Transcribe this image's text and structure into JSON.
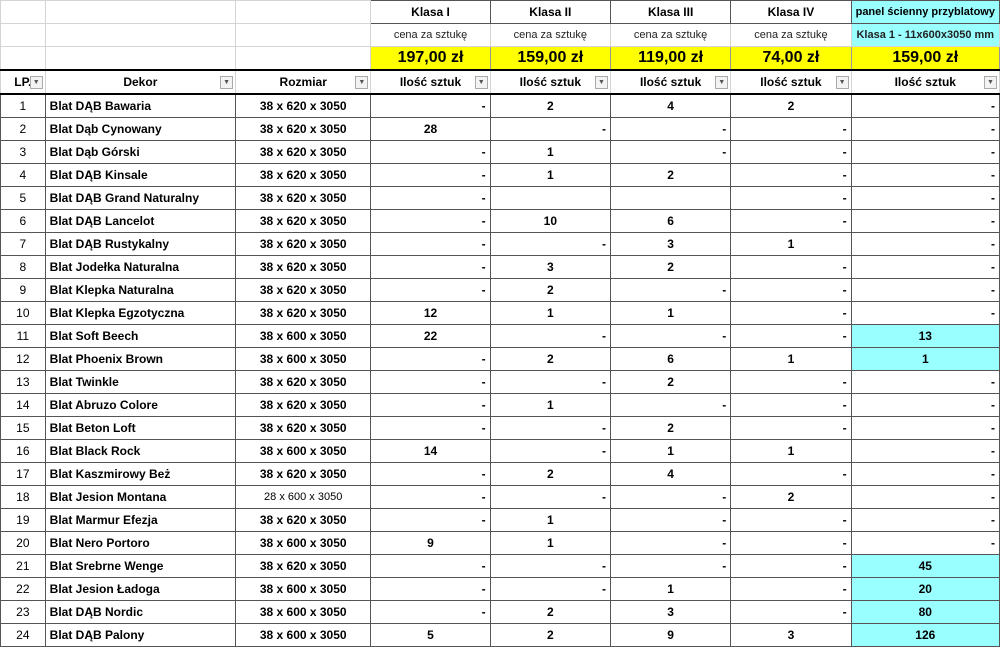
{
  "header": {
    "classes": [
      "Klasa I",
      "Klasa II",
      "Klasa III",
      "Klasa IV"
    ],
    "panel_title": "panel ścienny przyblatowy",
    "panel_subtitle": "Klasa 1 - 11x600x3050 mm",
    "price_label": "cena za sztukę",
    "prices": [
      "197,00 zł",
      "159,00 zł",
      "119,00 zł",
      "74,00 zł",
      "159,00 zł"
    ]
  },
  "columns": {
    "lp": "LP.",
    "dekor": "Dekor",
    "rozmiar": "Rozmiar",
    "qty": "Ilość sztuk"
  },
  "colors": {
    "price_bg": "#ffff00",
    "panel_bg": "#99ffff"
  },
  "rows": [
    {
      "lp": "1",
      "dekor": "Blat DĄB Bawaria",
      "size": "38 x 620 x 3050",
      "q": [
        "-",
        "2",
        "4",
        "2",
        "-"
      ]
    },
    {
      "lp": "2",
      "dekor": "Blat Dąb Cynowany",
      "size": "38 x 620 x 3050",
      "q": [
        "28",
        "-",
        "-",
        "-",
        "-"
      ]
    },
    {
      "lp": "3",
      "dekor": "Blat Dąb Górski",
      "size": "38 x 620 x 3050",
      "q": [
        "-",
        "1",
        "-",
        "-",
        "-"
      ]
    },
    {
      "lp": "4",
      "dekor": "Blat DĄB Kinsale",
      "size": "38 x 620 x 3050",
      "q": [
        "-",
        "1",
        "2",
        "-",
        "-"
      ]
    },
    {
      "lp": "5",
      "dekor": "Blat DĄB Grand Naturalny",
      "size": "38 x 620 x 3050",
      "q": [
        "-",
        "",
        "",
        "-",
        "-"
      ]
    },
    {
      "lp": "6",
      "dekor": "Blat DĄB Lancelot",
      "size": "38 x 620 x 3050",
      "q": [
        "-",
        "10",
        "6",
        "-",
        "-"
      ]
    },
    {
      "lp": "7",
      "dekor": "Blat DĄB Rustykalny",
      "size": "38 x 620 x 3050",
      "q": [
        "-",
        "-",
        "3",
        "1",
        "-"
      ]
    },
    {
      "lp": "8",
      "dekor": "Blat Jodełka Naturalna",
      "size": "38 x 620 x 3050",
      "q": [
        "-",
        "3",
        "2",
        "-",
        "-"
      ]
    },
    {
      "lp": "9",
      "dekor": "Blat Klepka Naturalna",
      "size": "38 x 620 x 3050",
      "q": [
        "-",
        "2",
        "-",
        "-",
        "-"
      ]
    },
    {
      "lp": "10",
      "dekor": "Blat Klepka Egzotyczna",
      "size": "38 x 620 x 3050",
      "q": [
        "12",
        "1",
        "1",
        "-",
        "-"
      ]
    },
    {
      "lp": "11",
      "dekor": "Blat Soft Beech",
      "size": "38 x 600 x 3050",
      "q": [
        "22",
        "-",
        "-",
        "-",
        "13"
      ]
    },
    {
      "lp": "12",
      "dekor": "Blat Phoenix Brown",
      "size": "38 x 600 x 3050",
      "q": [
        "-",
        "2",
        "6",
        "1",
        "1"
      ]
    },
    {
      "lp": "13",
      "dekor": "Blat Twinkle",
      "size": "38 x 620 x 3050",
      "q": [
        "-",
        "-",
        "2",
        "-",
        "-"
      ]
    },
    {
      "lp": "14",
      "dekor": "Blat Abruzo Colore",
      "size": "38 x 620 x 3050",
      "q": [
        "-",
        "1",
        "-",
        "-",
        "-"
      ]
    },
    {
      "lp": "15",
      "dekor": "Blat Beton Loft",
      "size": "38 x 620 x 3050",
      "q": [
        "-",
        "-",
        "2",
        "-",
        "-"
      ]
    },
    {
      "lp": "16",
      "dekor": "Blat Black Rock",
      "size": "38 x 600 x 3050",
      "q": [
        "14",
        "-",
        "1",
        "1",
        "-"
      ]
    },
    {
      "lp": "17",
      "dekor": "Blat Kaszmirowy Beż",
      "size": "38 x 620 x 3050",
      "q": [
        "-",
        "2",
        "4",
        "-",
        "-"
      ]
    },
    {
      "lp": "18",
      "dekor": "Blat Jesion Montana",
      "size": "28 x 600 x 3050",
      "q": [
        "-",
        "-",
        "-",
        "2",
        "-"
      ]
    },
    {
      "lp": "19",
      "dekor": "Blat Marmur Efezja",
      "size": "38 x 620 x 3050",
      "q": [
        "-",
        "1",
        "-",
        "-",
        "-"
      ]
    },
    {
      "lp": "20",
      "dekor": "Blat Nero Portoro",
      "size": "38 x 600 x 3050",
      "q": [
        "9",
        "1",
        "-",
        "-",
        "-"
      ]
    },
    {
      "lp": "21",
      "dekor": "Blat Srebrne Wenge",
      "size": "38 x 620 x 3050",
      "q": [
        "-",
        "-",
        "-",
        "-",
        "45"
      ]
    },
    {
      "lp": "22",
      "dekor": "Blat Jesion Ładoga",
      "size": "38 x 600 x 3050",
      "q": [
        "-",
        "-",
        "1",
        "-",
        "20"
      ]
    },
    {
      "lp": "23",
      "dekor": "Blat DĄB Nordic",
      "size": "38 x 600 x 3050",
      "q": [
        "-",
        "2",
        "3",
        "-",
        "80"
      ]
    },
    {
      "lp": "24",
      "dekor": "Blat DĄB Palony",
      "size": "38 x 600 x 3050",
      "q": [
        "5",
        "2",
        "9",
        "3",
        "126"
      ]
    }
  ]
}
